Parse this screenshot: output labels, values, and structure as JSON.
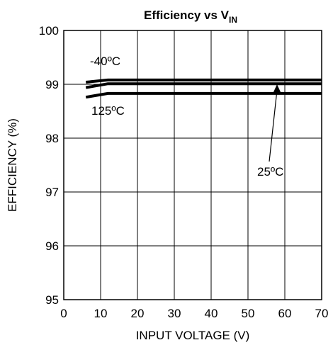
{
  "chart_data": {
    "type": "line",
    "title": "Efficiency vs V",
    "title_subscript": "IN",
    "xlabel": "INPUT VOLTAGE (V)",
    "ylabel": "EFFICIENCY (%)",
    "xlim": [
      0,
      70
    ],
    "ylim": [
      95,
      100
    ],
    "xticks": [
      "0",
      "10",
      "20",
      "30",
      "40",
      "50",
      "60",
      "70"
    ],
    "yticks": [
      "95",
      "96",
      "97",
      "98",
      "99",
      "100"
    ],
    "grid": true,
    "series": [
      {
        "name": "-40ºC",
        "x": [
          6,
          12,
          70
        ],
        "y": [
          99.04,
          99.08,
          99.08
        ]
      },
      {
        "name": "25ºC",
        "x": [
          6,
          12,
          70
        ],
        "y": [
          98.94,
          99.01,
          99.01
        ]
      },
      {
        "name": "125ºC",
        "x": [
          6,
          12,
          70
        ],
        "y": [
          98.76,
          98.83,
          98.83
        ]
      }
    ],
    "annotations": [
      {
        "label": "-40ºC"
      },
      {
        "label": "125ºC"
      },
      {
        "label": "25ºC"
      }
    ]
  }
}
